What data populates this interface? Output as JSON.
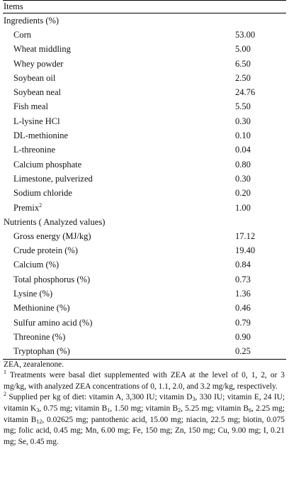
{
  "header": {
    "items_label": "Items"
  },
  "ingredients": {
    "title": "Ingredients (%)",
    "rows": [
      {
        "name": "Corn",
        "value": "53.00"
      },
      {
        "name": "Wheat middling",
        "value": "5.00"
      },
      {
        "name": "Whey powder",
        "value": "6.50"
      },
      {
        "name": "Soybean oil",
        "value": "2.50"
      },
      {
        "name": "Soybean neal",
        "value": "24.76"
      },
      {
        "name": "Fish meal",
        "value": "5.50"
      },
      {
        "name": "L-lysine HCl",
        "value": "0.30"
      },
      {
        "name": "DL-methionine",
        "value": "0.10"
      },
      {
        "name": "L-threonine",
        "value": "0.04"
      },
      {
        "name": "Calcium phosphate",
        "value": "0.80"
      },
      {
        "name": "Limestone, pulverized",
        "value": "0.30"
      },
      {
        "name": "Sodium chloride",
        "value": "0.20"
      }
    ],
    "premix": {
      "name": "Premix",
      "sup": "2",
      "value": "1.00"
    }
  },
  "nutrients": {
    "title": "Nutrients ( Analyzed values)",
    "rows": [
      {
        "name": "Gross energy (MJ/kg)",
        "value": "17.12"
      },
      {
        "name": "Crude protein (%)",
        "value": "19.40"
      },
      {
        "name": "Calcium (%)",
        "value": "0.84"
      },
      {
        "name": "Total phosphorus (%)",
        "value": "0.73"
      },
      {
        "name": "Lysine (%)",
        "value": "1.36"
      },
      {
        "name": "Methionine (%)",
        "value": "0.46"
      },
      {
        "name": "Sulfur amino acid (%)",
        "value": "0.79"
      },
      {
        "name": "Threonine (%)",
        "value": "0.90"
      },
      {
        "name": "Tryptophan (%)",
        "value": "0.25"
      }
    ]
  },
  "footnotes": {
    "abbrev": "ZEA, zearalenone.",
    "note1_mark": "1",
    "note1": "Treatments were basal diet supplemented with ZEA at the level of 0, 1, 2, or 3 mg/kg, with analyzed ZEA concentrations of 0, 1.1, 2.0, and 3.2 mg/kg, respectively.",
    "note2_mark": "2",
    "note2_parts": [
      "Supplied per kg of diet: vitamin A, 3,300 IU; vitamin D",
      "3",
      ", 330 IU; vitamin E, 24 IU; vitamin K",
      "3",
      ", 0.75 mg; vitamin B",
      "1",
      ", 1.50 mg; vitamin B",
      "2",
      ", 5.25 mg; vitamin B",
      "6",
      ", 2.25 mg; vitamin B",
      "12",
      ", 0.02625 mg; pantothenic acid, 15.00 mg; niacin, 22.5 mg; biotin, 0.075 mg; folic acid, 0.45 mg; Mn, 6.00 mg; Fe, 150 mg; Zn, 150 mg; Cu, 9.00 mg; I, 0.21 mg; Se, 0.45 mg."
    ]
  }
}
